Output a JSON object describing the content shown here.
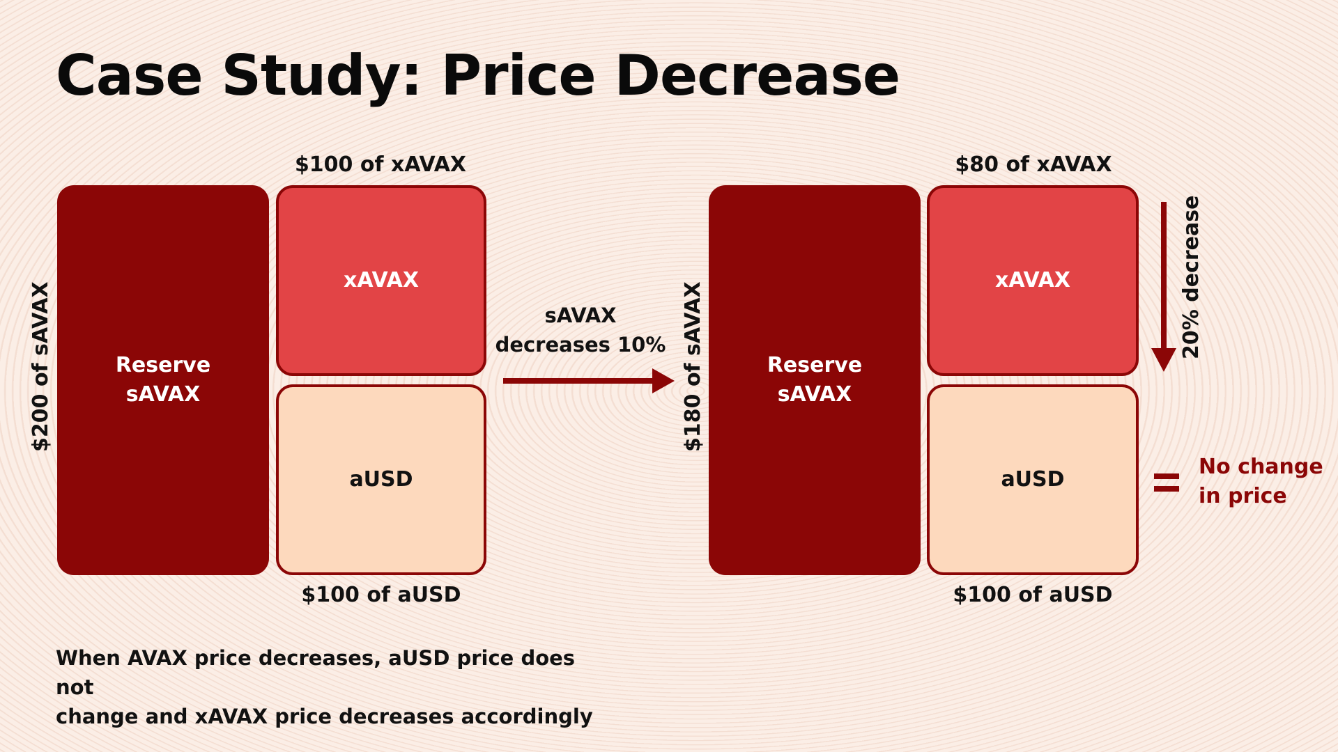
{
  "title": "Case Study: Price Decrease",
  "before": {
    "top_caption": "$100 of xAVAX",
    "bottom_caption": "$100 of aUSD",
    "side_label": "$200 of sAVAX",
    "reserve_label": "Reserve\nsAVAX",
    "xavax_label": "xAVAX",
    "ausd_label": "aUSD"
  },
  "transition": {
    "line1": "sAVAX",
    "line2": "decreases 10%"
  },
  "after": {
    "top_caption": "$80 of xAVAX",
    "bottom_caption": "$100 of aUSD",
    "side_label": "$180 of sAVAX",
    "reserve_label": "Reserve\nsAVAX",
    "xavax_label": "xAVAX",
    "ausd_label": "aUSD",
    "decrease_label": "20% decrease",
    "no_change_line1": "No change",
    "no_change_line2": "in price"
  },
  "footnote": {
    "line1": "When AVAX price decreases, aUSD price does not",
    "line2": "change and xAVAX price decreases accordingly"
  },
  "colors": {
    "reserve": "#8b0606",
    "xavax": "#e24446",
    "ausd": "#fdd9bd",
    "accent": "#8b0606",
    "background": "#fbeee6"
  },
  "icons": {
    "transition_arrow": "arrow-right-icon",
    "decrease_arrow": "arrow-down-icon",
    "equals_sign": "equals-icon"
  }
}
